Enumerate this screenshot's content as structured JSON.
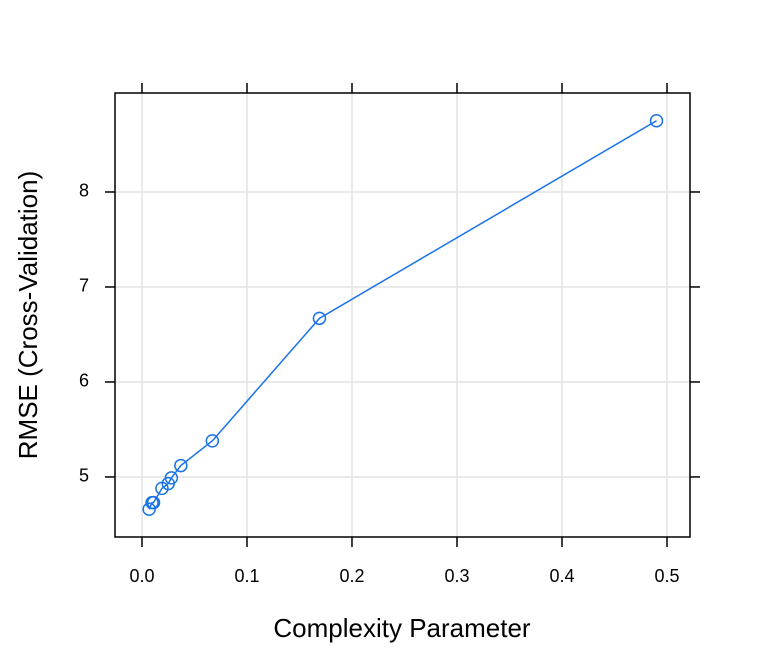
{
  "chart_data": {
    "type": "line",
    "xlabel": "Complexity Parameter",
    "ylabel": "RMSE (Cross-Validation)",
    "series": [
      {
        "name": "RMSE",
        "color": "#1a73e8",
        "x": [
          0.0068,
          0.0096,
          0.011,
          0.019,
          0.025,
          0.028,
          0.037,
          0.067,
          0.169,
          0.49
        ],
        "values": [
          4.66,
          4.73,
          4.73,
          4.88,
          4.93,
          4.99,
          5.12,
          5.38,
          6.67,
          8.75
        ]
      }
    ],
    "xlim": [
      -0.0257,
      0.5219
    ],
    "ylim": [
      4.368,
      9.042
    ],
    "xticks": [
      {
        "value": 0,
        "label": "0.0"
      },
      {
        "value": 0.1,
        "label": "0.1"
      },
      {
        "value": 0.2,
        "label": "0.2"
      },
      {
        "value": 0.3,
        "label": "0.3"
      },
      {
        "value": 0.4,
        "label": "0.4"
      },
      {
        "value": 0.5,
        "label": "0.5"
      }
    ],
    "yticks": [
      5,
      6,
      7,
      8
    ],
    "grid": true
  }
}
